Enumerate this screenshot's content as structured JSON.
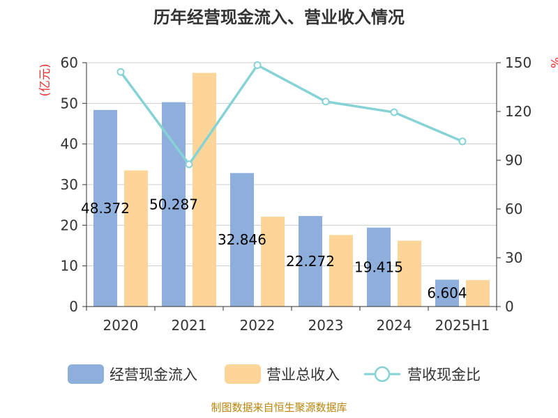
{
  "chart_data": {
    "type": "bar",
    "title": "历年经营现金流入、营业收入情况",
    "categories": [
      "2020",
      "2021",
      "2022",
      "2023",
      "2024",
      "2025H1"
    ],
    "y_left_unit": "(亿元)",
    "y_right_unit": "%",
    "y_left_range": [
      0,
      60
    ],
    "y_left_ticks": [
      "0",
      "10",
      "20",
      "30",
      "40",
      "50",
      "60"
    ],
    "y_right_range": [
      0,
      150
    ],
    "y_right_ticks": [
      "0",
      "30",
      "60",
      "90",
      "120",
      "150"
    ],
    "grid": true,
    "legend_position": "bottom",
    "series": [
      {
        "name": "经营现金流入",
        "kind": "bar",
        "axis": "left",
        "color": "#8eaedb",
        "values": [
          48.372,
          50.287,
          32.846,
          22.272,
          19.415,
          6.604
        ],
        "labels": [
          "48.372",
          "50.287",
          "32.846",
          "22.272",
          "19.415",
          "6.604"
        ]
      },
      {
        "name": "营业总收入",
        "kind": "bar",
        "axis": "left",
        "color": "#fdd598",
        "values": [
          33.5,
          57.5,
          22.1,
          17.6,
          16.2,
          6.5
        ]
      },
      {
        "name": "营收现金比",
        "kind": "line",
        "axis": "right",
        "color": "#86d3d6",
        "values": [
          144.3,
          87.5,
          148.5,
          126.1,
          119.5,
          101.6
        ]
      }
    ],
    "source": "制图数据来自恒生聚源数据库"
  }
}
